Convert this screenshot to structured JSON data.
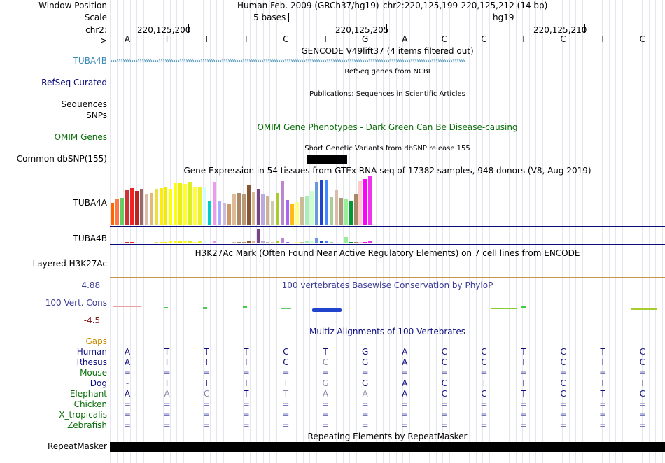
{
  "header": {
    "window_position_label": "Window Position",
    "scale_label": "Scale",
    "chrom_label": "chr2:",
    "strand_label": "--->",
    "assembly_text": "Human Feb. 2009 (GRCh37/hg19)",
    "position_text": "chr2:220,125,199-220,125,212 (14 bp)",
    "scale_text": "5 bases",
    "db_text": "hg19",
    "ticks": [
      "220,125,200",
      "220,125,205",
      "220,125,210"
    ]
  },
  "reference_bases": [
    "A",
    "T",
    "T",
    "T",
    "C",
    "T",
    "G",
    "A",
    "C",
    "C",
    "T",
    "C",
    "T",
    "C"
  ],
  "tracks": {
    "gencode": {
      "title": "GENCODE V49lift37 (4 items filtered out)",
      "label": "TUBA4B",
      "color": "#3b8bb7"
    },
    "refseq": {
      "title": "RefSeq genes from NCBI",
      "label": "RefSeq Curated",
      "color": "#0c0c78"
    },
    "publications": {
      "title": "Publications: Sequences in Scientific Articles",
      "label_sequences": "Sequences",
      "label_snps": "SNPs"
    },
    "omim": {
      "title": "OMIM Gene Phenotypes - Dark Green Can Be Disease-causing",
      "label": "OMIM Genes",
      "color": "#0a6e0a"
    },
    "dbsnp": {
      "title": "Short Genetic Variants from dbSNP release 155",
      "label": "Common dbSNP(155)"
    },
    "gtex": {
      "title": "Gene Expression in 54 tissues from GTEx RNA-seq of 17382 samples, 948 donors (V8, Aug 2019)",
      "label_a": "TUBA4A",
      "label_b": "TUBA4B",
      "tissue_colors": [
        "#ff6600",
        "#ff7744",
        "#66cc66",
        "#cc3333",
        "#ee2222",
        "#bb2222",
        "#996666",
        "#ddbbaa",
        "#ddbb77",
        "#eedd44",
        "#ffee00",
        "#eeee00",
        "#ffff00",
        "#ffff00",
        "#eeee11",
        "#ffff22",
        "#ddee22",
        "#ffff33",
        "#eeee33",
        "#ccffff",
        "#00cccc",
        "#ee99ee",
        "#aaaaff",
        "#ccbbdd",
        "#cc9966",
        "#ddbb99",
        "#aa8866",
        "#bb9977",
        "#885533",
        "#d9bb99",
        "#774488",
        "#bbaadd",
        "#cdb391",
        "#ccccaa",
        "#aacc33",
        "#bb88cc",
        "#aa66ee",
        "#ffbb11",
        "#ffff88",
        "#ccbb99",
        "#aaeebb",
        "#ccffcc",
        "#6699dd",
        "#2244cc",
        "#4488ff",
        "#aacc99",
        "#ddbbaa",
        "#aa9977",
        "#99ee99",
        "#009933",
        "#aa8866",
        "#ffcccc",
        "#ff00ff",
        "#ee33ee"
      ],
      "values_a": [
        33,
        38,
        40,
        52,
        55,
        50,
        53,
        45,
        47,
        53,
        55,
        57,
        53,
        62,
        62,
        61,
        64,
        56,
        57,
        57,
        35,
        64,
        35,
        33,
        32,
        45,
        47,
        45,
        60,
        49,
        53,
        45,
        43,
        35,
        47,
        65,
        37,
        32,
        34,
        42,
        43,
        50,
        64,
        66,
        66,
        42,
        51,
        40,
        39,
        35,
        45,
        65,
        68,
        72
      ],
      "values_b": [
        0,
        0,
        1,
        2,
        2,
        1,
        1,
        1,
        1,
        2,
        2,
        2,
        3,
        3,
        4,
        3,
        3,
        2,
        3,
        3,
        1,
        4,
        1,
        1,
        1,
        2,
        2,
        2,
        4,
        3,
        20,
        3,
        2,
        2,
        3,
        7,
        2,
        1,
        2,
        2,
        3,
        3,
        8,
        3,
        3,
        2,
        1,
        1,
        9,
        2,
        2,
        2,
        2,
        3
      ]
    },
    "h3k27ac": {
      "title": "H3K27Ac Mark (Often Found Near Active Regulatory Elements) on 7 cell lines from ENCODE",
      "label": "Layered H3K27Ac"
    },
    "phylop": {
      "title": "100 vertebrates Basewise Conservation by PhyloP",
      "label": "100 Vert. Cons",
      "max": "4.88 _",
      "min": "-4.5 _",
      "color": "#3c3c96",
      "min_color": "#7f1f1f"
    },
    "multiz": {
      "title": "Multiz Alignments of 100 Vertebrates",
      "gaps_label": "Gaps",
      "species": [
        {
          "name": "Human",
          "color": "#0b0b80",
          "bases": [
            "A",
            "T",
            "T",
            "T",
            "C",
            "T",
            "G",
            "A",
            "C",
            "C",
            "T",
            "C",
            "T",
            "C"
          ]
        },
        {
          "name": "Rhesus",
          "color": "#0b0b80",
          "bases": [
            "A",
            "T",
            "T",
            "T",
            "C",
            "C",
            "G",
            "A",
            "C",
            "C",
            "T",
            "C",
            "T",
            "C"
          ]
        },
        {
          "name": "Mouse",
          "color": "#0a6e0a",
          "bases": [
            "=",
            "=",
            "=",
            "=",
            "=",
            "=",
            "=",
            "=",
            "=",
            "=",
            "=",
            "=",
            "=",
            "="
          ]
        },
        {
          "name": "Dog",
          "color": "#0b0b80",
          "bases": [
            "-",
            "T",
            "T",
            "T",
            "T",
            "G",
            "G",
            "A",
            "C",
            "T",
            "T",
            "C",
            "T",
            "T"
          ]
        },
        {
          "name": "Elephant",
          "color": "#0a6e0a",
          "bases": [
            "A",
            "A",
            "C",
            "T",
            "T",
            "A",
            "A",
            "A",
            "C",
            "C",
            "T",
            "C",
            "T",
            "C"
          ]
        },
        {
          "name": "Chicken",
          "color": "#0a6e0a",
          "bases": [
            "=",
            "=",
            "=",
            "=",
            "=",
            "=",
            "=",
            "=",
            "=",
            "=",
            "=",
            "=",
            "=",
            "="
          ]
        },
        {
          "name": "X_tropicalis",
          "color": "#0a6e0a",
          "bases": [
            "=",
            "=",
            "=",
            "=",
            "=",
            "=",
            "=",
            "=",
            "=",
            "=",
            "=",
            "=",
            "=",
            "="
          ]
        },
        {
          "name": "Zebrafish",
          "color": "#0a6e0a",
          "bases": [
            "=",
            "=",
            "=",
            "=",
            "=",
            "=",
            "=",
            "=",
            "=",
            "=",
            "=",
            "=",
            "=",
            "="
          ]
        }
      ]
    },
    "repeatmasker": {
      "title": "Repeating Elements by RepeatMasker",
      "label": "RepeatMasker"
    }
  }
}
